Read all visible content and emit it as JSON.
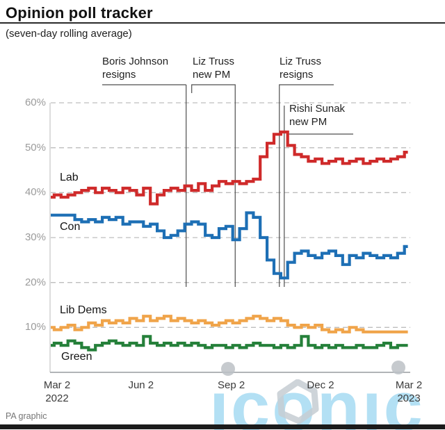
{
  "header": {
    "title": "Opinion poll tracker",
    "subtitle": "(seven-day rolling average)"
  },
  "footer": {
    "credit": "PA graphic"
  },
  "watermark": {
    "text": "iconic",
    "color": "#a8dcf4"
  },
  "colors": {
    "lab": "#cf2a2a",
    "con": "#1d6fb5",
    "libdems": "#f0a44a",
    "green": "#25803a",
    "grid": "#bdbdbd",
    "event_line": "#4d4d4d"
  },
  "chart_data": {
    "type": "line",
    "title": "Opinion poll tracker",
    "subtitle": "(seven-day rolling average)",
    "grid": "dashed horizontal",
    "legend_position": "labels next to lines",
    "y_axis": {
      "tick_labels": [
        "60%",
        "50%",
        "40%",
        "30%",
        "20%",
        "10%"
      ],
      "tick_values": [
        60,
        50,
        40,
        30,
        20,
        10
      ],
      "range": [
        0,
        62
      ]
    },
    "x_axis": {
      "tick_labels": [
        [
          "Mar 2",
          "2022"
        ],
        [
          "Jun 2"
        ],
        [
          "Sep 2"
        ],
        [
          "Dec 2"
        ],
        [
          "Mar 2",
          "2023"
        ]
      ],
      "tick_days": [
        0,
        92,
        184,
        275,
        365
      ],
      "range_days": [
        0,
        365
      ]
    },
    "events": [
      {
        "label_lines": [
          "Boris Johnson",
          "resigns"
        ],
        "day": 138
      },
      {
        "label_lines": [
          "Liz Truss",
          "new PM"
        ],
        "day": 188
      },
      {
        "label_lines": [
          "Liz Truss",
          "resigns"
        ],
        "day": 233
      },
      {
        "label_lines": [
          "Rishi Sunak",
          "new PM"
        ],
        "day": 238
      }
    ],
    "days": [
      0,
      7,
      14,
      21,
      28,
      35,
      42,
      49,
      56,
      63,
      70,
      77,
      84,
      91,
      98,
      105,
      112,
      119,
      126,
      133,
      140,
      147,
      154,
      161,
      168,
      175,
      182,
      189,
      196,
      203,
      210,
      217,
      224,
      231,
      238,
      245,
      252,
      259,
      266,
      273,
      280,
      287,
      294,
      301,
      308,
      315,
      322,
      329,
      336,
      343,
      350,
      357,
      364
    ],
    "series": [
      {
        "name": "Lab",
        "color": "#cf2a2a",
        "values": [
          39,
          39.5,
          39,
          39.5,
          40,
          40.5,
          41,
          40,
          41,
          40.5,
          40,
          41,
          40.5,
          39.5,
          41,
          37.5,
          39.5,
          40.5,
          41,
          40.5,
          41.5,
          40.5,
          42,
          40.5,
          41.5,
          42.5,
          42,
          42.5,
          42,
          42.5,
          43,
          48,
          51,
          53,
          53.5,
          50.5,
          48.5,
          48,
          47,
          47.5,
          46.5,
          47,
          47.5,
          46.5,
          47,
          47.5,
          46.5,
          47,
          47.5,
          47,
          47.5,
          48,
          49
        ]
      },
      {
        "name": "Con",
        "color": "#1d6fb5",
        "values": [
          35,
          35,
          35,
          35,
          34,
          33.5,
          34,
          33.5,
          34.5,
          34,
          34.5,
          33,
          33.5,
          33.5,
          32.5,
          33,
          31.5,
          30,
          30.5,
          31.5,
          33,
          33.5,
          33,
          30.5,
          30,
          32,
          32.5,
          29.5,
          32,
          35.5,
          34.5,
          30,
          25,
          22,
          21,
          24.5,
          26.5,
          27,
          26,
          25.5,
          26.5,
          27,
          26,
          24,
          26,
          25.5,
          26.5,
          26,
          25.5,
          26,
          25.5,
          26.5,
          28
        ]
      },
      {
        "name": "Lib Dems",
        "color": "#f0a44a",
        "values": [
          10,
          9.5,
          10,
          10.5,
          9.5,
          10,
          11,
          10.5,
          11.5,
          11,
          11.5,
          11,
          12,
          11.5,
          12.5,
          11.5,
          12,
          12.5,
          11.5,
          12,
          11.5,
          11,
          11.5,
          11,
          10.5,
          11,
          11.5,
          11,
          11.5,
          12,
          12.5,
          12,
          11.5,
          12,
          11.5,
          10.5,
          10,
          10.5,
          10,
          10.5,
          9.5,
          9,
          9.5,
          9,
          10,
          9.5,
          9,
          9,
          9,
          9,
          9,
          9,
          9
        ]
      },
      {
        "name": "Green",
        "color": "#25803a",
        "values": [
          6,
          6.5,
          6,
          7,
          6.5,
          5.5,
          5,
          6,
          6.5,
          7,
          6.5,
          6,
          6.5,
          6,
          8,
          6.5,
          6,
          6.5,
          6,
          6.5,
          6,
          6.5,
          6,
          5.5,
          6,
          6,
          5.5,
          6,
          5.5,
          6,
          6.5,
          6,
          6,
          5.5,
          6,
          5.5,
          6,
          8,
          6,
          5.5,
          6,
          5.5,
          6,
          5.5,
          5.5,
          6,
          5.5,
          5.5,
          6,
          6.5,
          5.5,
          6,
          6
        ]
      }
    ]
  }
}
